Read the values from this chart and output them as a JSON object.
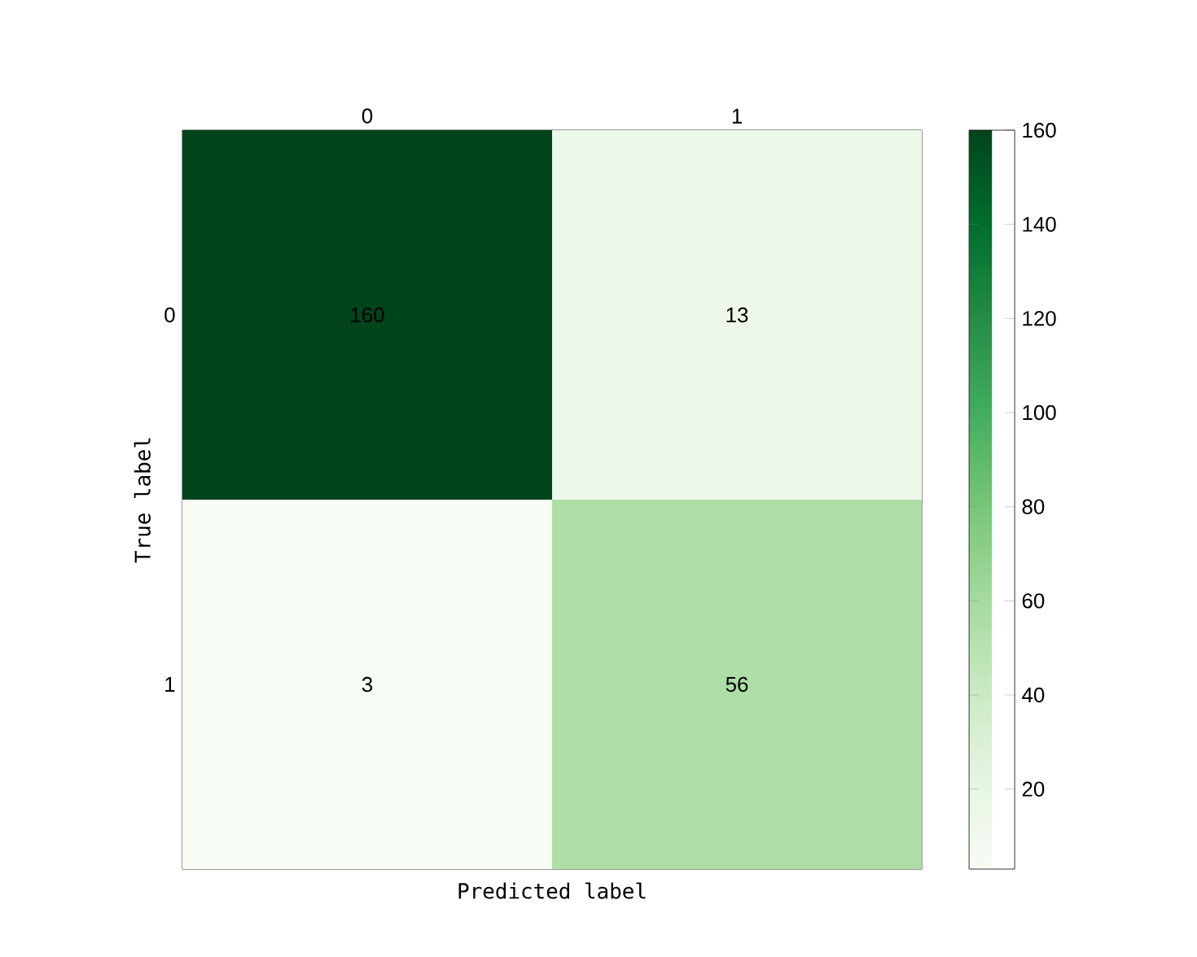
{
  "chart_data": {
    "type": "heatmap",
    "xlabel": "Predicted label",
    "ylabel": "True label",
    "categories": [
      "0",
      "1"
    ],
    "y_categories": [
      "0",
      "1"
    ],
    "cells": [
      [
        160,
        13
      ],
      [
        3,
        56
      ]
    ],
    "data_labels": true,
    "clim": [
      3,
      160
    ],
    "cticks": [
      20,
      40,
      60,
      80,
      100,
      120,
      140,
      160
    ]
  }
}
